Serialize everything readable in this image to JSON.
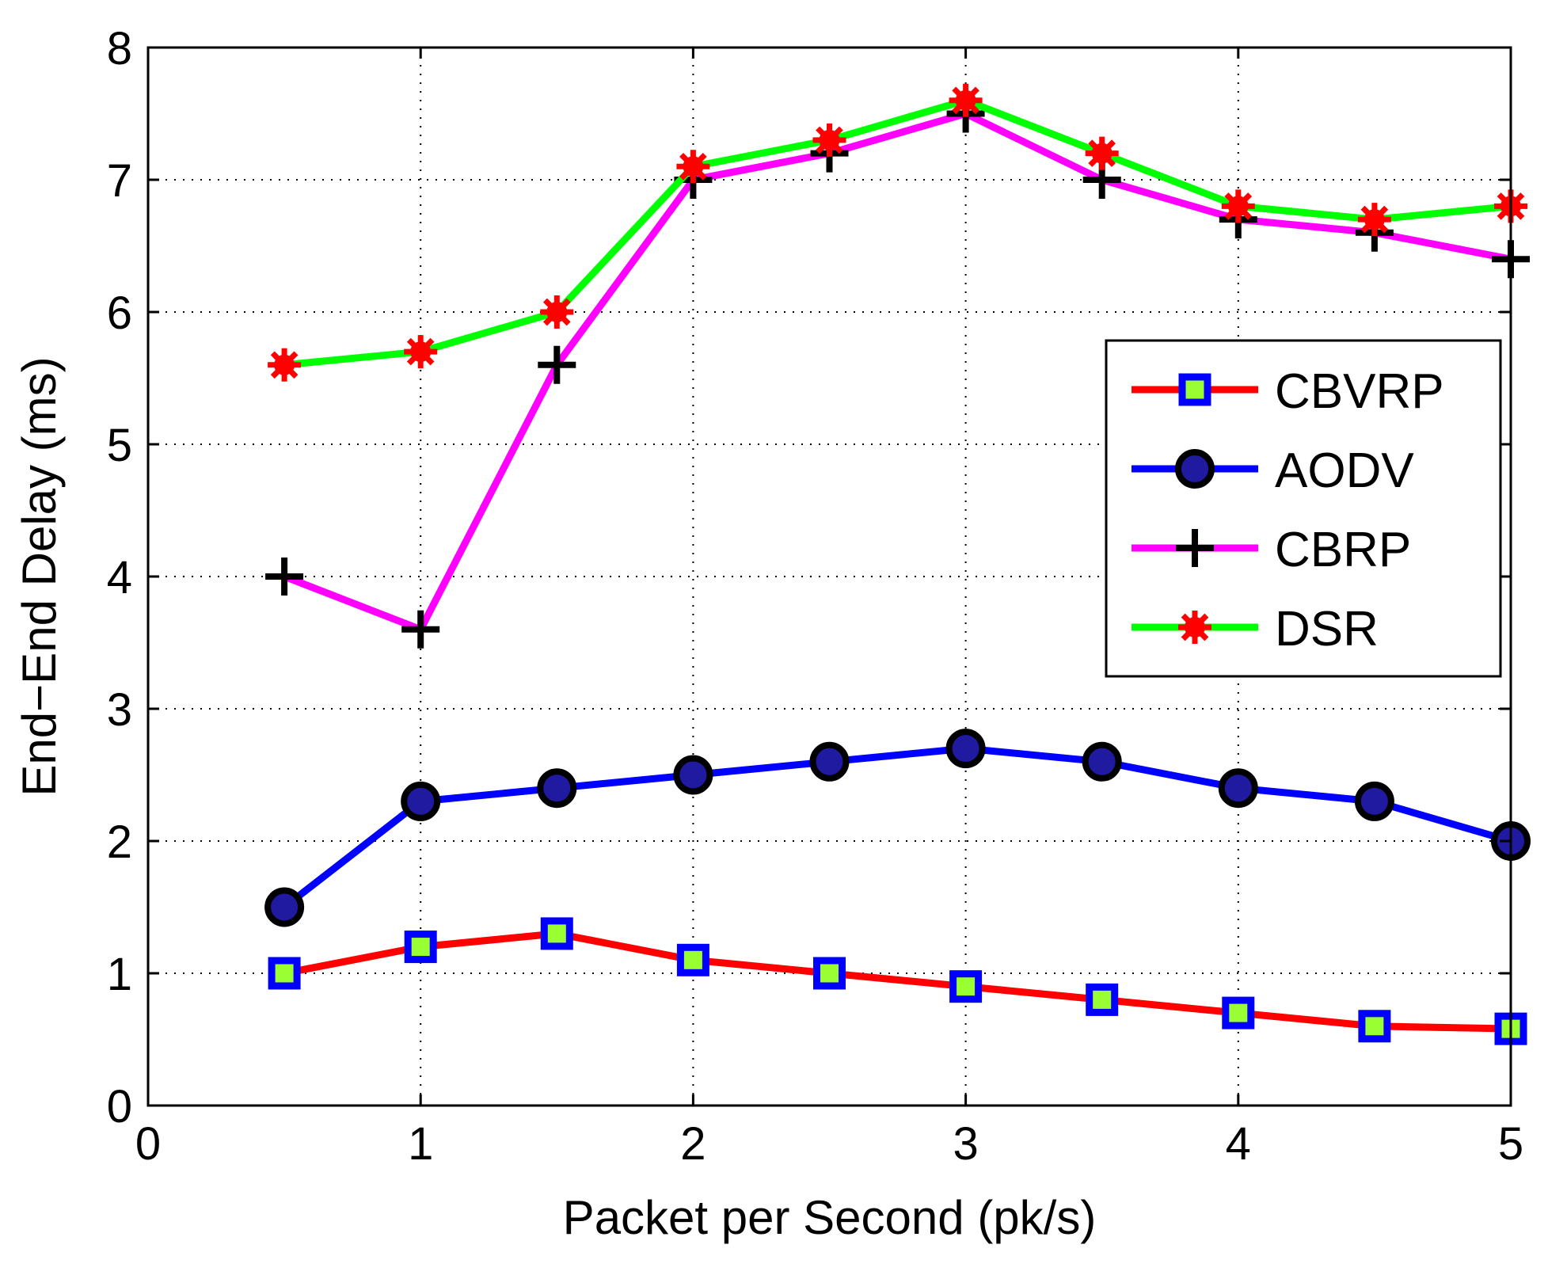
{
  "chart_data": {
    "type": "line",
    "title": "",
    "xlabel": "Packet per Second (pk/s)",
    "ylabel": "End−End Delay (ms)",
    "xlim": [
      0,
      5
    ],
    "ylim": [
      0,
      8
    ],
    "xticks": [
      "0",
      "1",
      "2",
      "3",
      "4",
      "5"
    ],
    "yticks": [
      "0",
      "1",
      "2",
      "3",
      "4",
      "5",
      "6",
      "7",
      "8"
    ],
    "grid": true,
    "legend_position": "right",
    "x": [
      0.5,
      1.0,
      1.5,
      2.0,
      2.5,
      3.0,
      3.5,
      4.0,
      4.5,
      5.0
    ],
    "series": [
      {
        "name": "CBVRP",
        "values": [
          1.0,
          1.2,
          1.3,
          1.1,
          1.0,
          0.9,
          0.8,
          0.7,
          0.6,
          0.58
        ],
        "line_color": "#ff0000",
        "marker": "square",
        "marker_edge": "#0000ff",
        "marker_fill": "#99ff33"
      },
      {
        "name": "AODV",
        "values": [
          1.5,
          2.3,
          2.4,
          2.5,
          2.6,
          2.7,
          2.6,
          2.4,
          2.3,
          2.0
        ],
        "line_color": "#0000ff",
        "marker": "circle",
        "marker_edge": "#000000",
        "marker_fill": "#1f1aa0"
      },
      {
        "name": "CBRP",
        "values": [
          4.0,
          3.6,
          5.6,
          7.0,
          7.2,
          7.5,
          7.0,
          6.7,
          6.6,
          6.4
        ],
        "line_color": "#ff00ff",
        "marker": "plus",
        "marker_edge": "#000000",
        "marker_fill": "none"
      },
      {
        "name": "DSR",
        "values": [
          5.6,
          5.7,
          6.0,
          7.1,
          7.3,
          7.6,
          7.2,
          6.8,
          6.7,
          6.8
        ],
        "line_color": "#00ff00",
        "marker": "asterisk",
        "marker_edge": "#ff0000",
        "marker_fill": "#ff0000"
      }
    ]
  }
}
